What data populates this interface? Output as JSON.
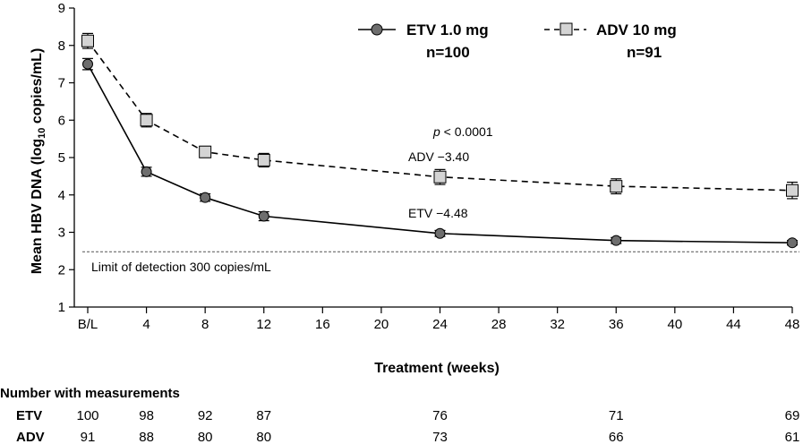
{
  "chart_data": {
    "type": "line",
    "title": "",
    "xlabel": "Treatment (weeks)",
    "ylabel_main": "Mean HBV DNA (log",
    "ylabel_sub": "10",
    "ylabel_tail": " copies/mL)",
    "ylim": [
      1,
      9
    ],
    "yticks": [
      1,
      2,
      3,
      4,
      5,
      6,
      7,
      8,
      9
    ],
    "xlim": [
      0,
      48
    ],
    "xticks": [
      {
        "v": 0,
        "label": "B/L"
      },
      {
        "v": 4,
        "label": "4"
      },
      {
        "v": 8,
        "label": "8"
      },
      {
        "v": 12,
        "label": "12"
      },
      {
        "v": 16,
        "label": "16"
      },
      {
        "v": 20,
        "label": "20"
      },
      {
        "v": 24,
        "label": "24"
      },
      {
        "v": 28,
        "label": "28"
      },
      {
        "v": 32,
        "label": "32"
      },
      {
        "v": 36,
        "label": "36"
      },
      {
        "v": 40,
        "label": "40"
      },
      {
        "v": 44,
        "label": "44"
      },
      {
        "v": 48,
        "label": "48"
      }
    ],
    "series": [
      {
        "name": "ETV 1.0 mg",
        "n_label": "n=100",
        "style": "solid",
        "marker": "circle",
        "x": [
          0,
          4,
          8,
          12,
          24,
          36,
          48
        ],
        "y": [
          7.5,
          4.62,
          3.93,
          3.43,
          2.97,
          2.78,
          2.72
        ],
        "err": [
          0.15,
          0.12,
          0.1,
          0.12,
          0.08,
          0.08,
          0.06
        ]
      },
      {
        "name": "ADV 10 mg",
        "n_label": "n=91",
        "style": "dashed",
        "marker": "square",
        "x": [
          0,
          4,
          8,
          12,
          24,
          36,
          48
        ],
        "y": [
          8.12,
          6.0,
          5.15,
          4.93,
          4.48,
          4.23,
          4.12
        ],
        "err": [
          0.2,
          0.18,
          0.15,
          0.18,
          0.2,
          0.2,
          0.22
        ]
      }
    ],
    "reference_line": {
      "y": 2.48,
      "label": "Limit of detection 300 copies/mL"
    },
    "annotations": {
      "p_prefix": "p",
      "p_rest": " < 0.0001",
      "adv": "ADV −3.40",
      "etv": "ETV −4.48"
    },
    "colors": {
      "etv_marker": "#6e6e6e",
      "adv_marker": "#d4d4d4",
      "line": "#000000"
    }
  },
  "table": {
    "heading": "Number with measurements",
    "rows": [
      {
        "label": "ETV",
        "values": [
          "100",
          "98",
          "92",
          "87",
          "76",
          "71",
          "69"
        ]
      },
      {
        "label": "ADV",
        "values": [
          "91",
          "88",
          "80",
          "80",
          "73",
          "66",
          "61"
        ]
      }
    ]
  }
}
